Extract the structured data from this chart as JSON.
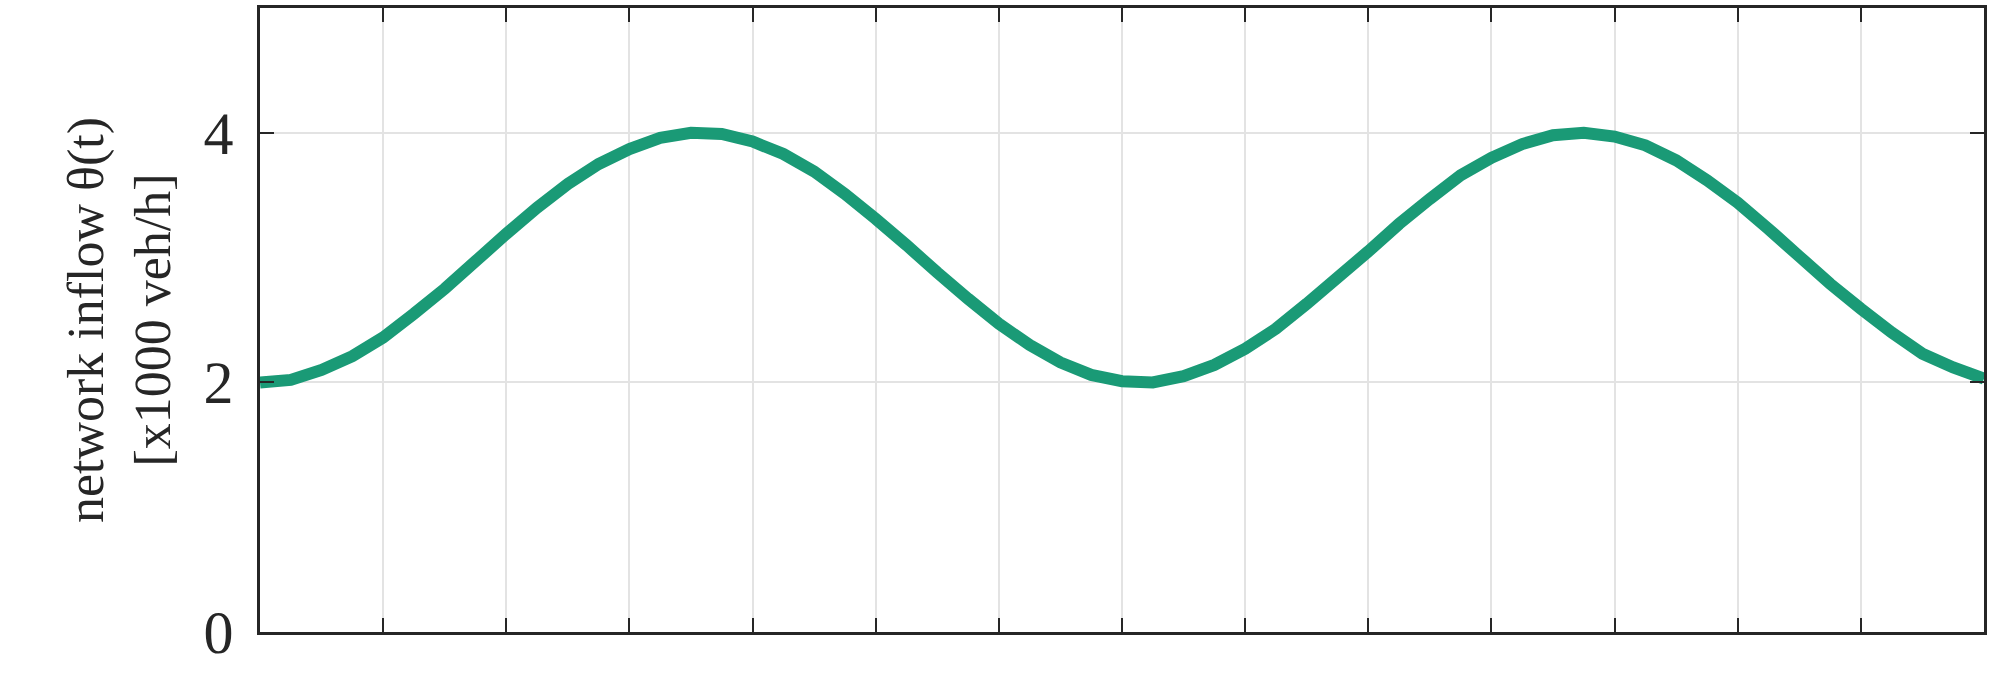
{
  "chart_data": {
    "type": "line",
    "ylabel": "network inflow θ(t)\n[x1000 veh/h]",
    "categories": [
      null,
      null,
      null,
      null,
      null,
      null,
      null,
      null,
      null,
      null,
      null,
      null,
      null,
      null,
      null,
      null,
      null,
      null,
      null,
      null,
      null,
      null,
      null,
      null,
      null,
      null,
      null,
      null,
      null,
      null,
      null,
      null,
      null,
      null,
      null,
      null,
      null,
      null,
      null,
      null,
      null,
      null,
      null,
      null,
      null,
      null,
      null,
      null,
      null,
      null,
      null,
      null,
      null,
      null,
      null,
      null,
      null
    ],
    "series": [
      {
        "color": "#1a9a76",
        "values": [
          2.0,
          2.02,
          2.1,
          2.21,
          2.36,
          2.55,
          2.75,
          2.97,
          3.19,
          3.4,
          3.59,
          3.75,
          3.87,
          3.96,
          4.0,
          3.99,
          3.93,
          3.83,
          3.69,
          3.51,
          3.31,
          3.1,
          2.88,
          2.67,
          2.47,
          2.3,
          2.16,
          2.06,
          2.01,
          2.0,
          2.05,
          2.14,
          2.27,
          2.43,
          2.63,
          2.84,
          3.05,
          3.27,
          3.47,
          3.66,
          3.8,
          3.91,
          3.98,
          4.0,
          3.97,
          3.9,
          3.78,
          3.62,
          3.44,
          3.23,
          3.01,
          2.79,
          2.59,
          2.4,
          2.23,
          2.12,
          2.03
        ]
      }
    ],
    "ylim": [
      0,
      5
    ],
    "yticks": [
      0,
      2,
      4
    ],
    "grid": true,
    "marker": "none",
    "line_style": "solid"
  }
}
